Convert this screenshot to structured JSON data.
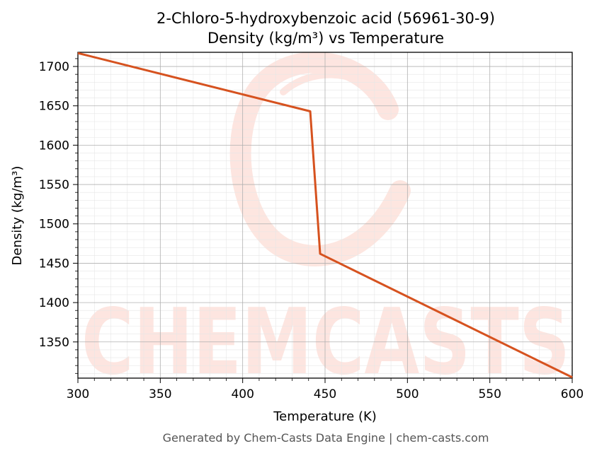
{
  "chart_data": {
    "type": "line",
    "title": "2-Chloro-5-hydroxybenzoic acid (56961-30-9)",
    "subtitle": "Density (kg/m³) vs Temperature",
    "xlabel": "Temperature (K)",
    "ylabel": "Density (kg/m³)",
    "xlim": [
      300,
      600
    ],
    "ylim": [
      1304,
      1718
    ],
    "x_ticks": [
      300,
      350,
      400,
      450,
      500,
      550,
      600
    ],
    "y_ticks": [
      1350,
      1400,
      1450,
      1500,
      1550,
      1600,
      1650,
      1700
    ],
    "grid": true,
    "minor_grid": true,
    "legend": "none",
    "line_color": "#d6521f",
    "series": [
      {
        "x": [
          300,
          441,
          447,
          600
        ],
        "y": [
          1717,
          1643,
          1462,
          1305
        ]
      }
    ]
  },
  "watermark": {
    "text": "CHEMCASTS",
    "color": "#fde3dd"
  },
  "footer": "Generated by Chem-Casts Data Engine | chem-casts.com"
}
